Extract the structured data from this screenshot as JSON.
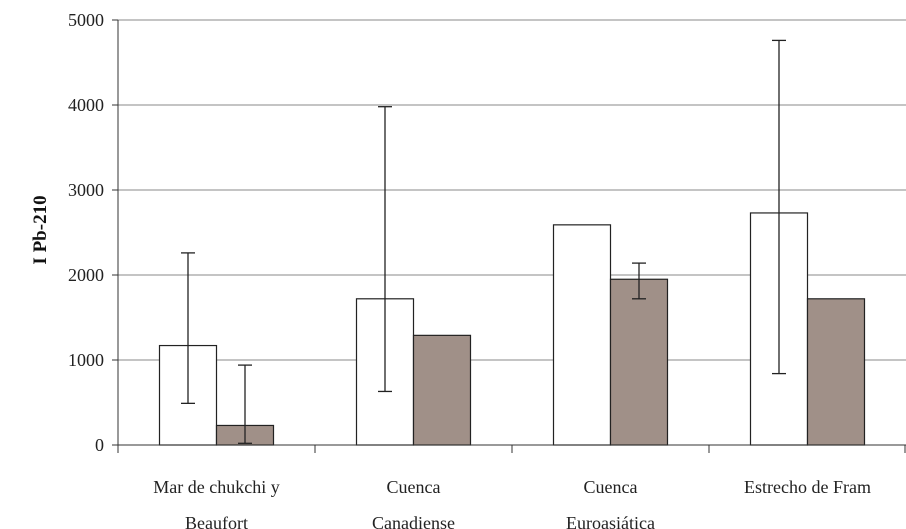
{
  "chart_data": {
    "type": "bar",
    "title": "",
    "xlabel": "",
    "ylabel": "I Pb-210",
    "ylim": [
      0,
      5000
    ],
    "yticks": [
      0,
      1000,
      2000,
      3000,
      4000,
      5000
    ],
    "grid": true,
    "categories": [
      [
        "Mar de chukchi y",
        "Beaufort"
      ],
      [
        "Cuenca",
        "Canadiense"
      ],
      [
        "Cuenca",
        "Euroasiática"
      ],
      [
        "Estrecho de Fram"
      ]
    ],
    "series": [
      {
        "values": [
          1170,
          1720,
          2590,
          2730
        ],
        "error_low": [
          490,
          630,
          null,
          840
        ],
        "error_high": [
          2260,
          3980,
          null,
          4760
        ]
      },
      {
        "values": [
          230,
          1290,
          1950,
          1720
        ],
        "error_low": [
          20,
          null,
          1720,
          null
        ],
        "error_high": [
          940,
          null,
          2140,
          null
        ]
      }
    ],
    "colors": {
      "series1": "#ffffff",
      "series2": "#a09088",
      "gridline": "#888888",
      "axis": "#333333"
    }
  }
}
